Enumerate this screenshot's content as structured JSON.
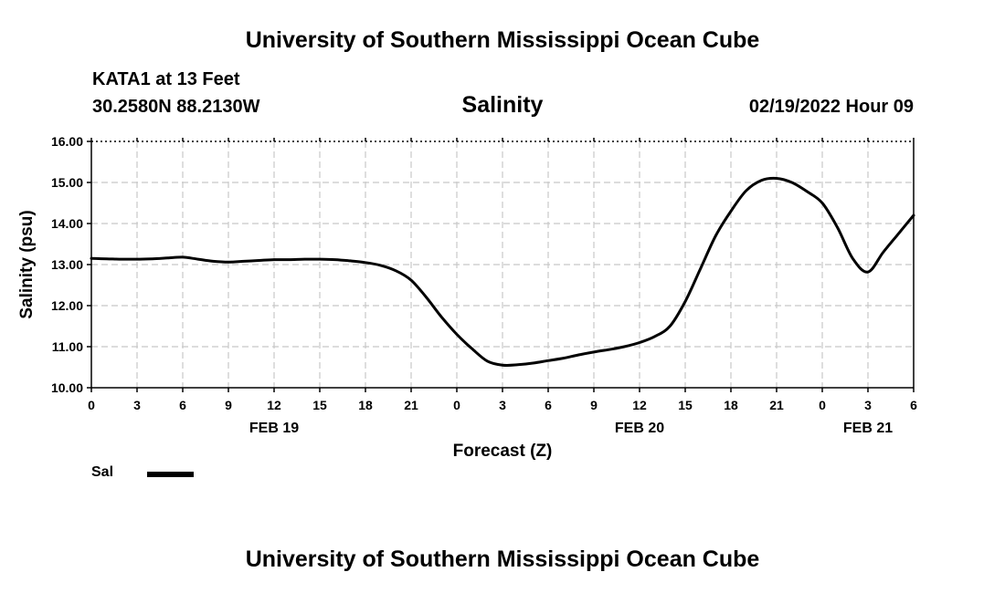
{
  "header": {
    "title": "University of Southern Mississippi Ocean Cube",
    "station": "KATA1 at 13 Feet",
    "coordinates": "30.2580N  88.2130W",
    "parameter": "Salinity",
    "datetime": "02/19/2022 Hour 09"
  },
  "footer": {
    "title": "University of Southern Mississippi Ocean Cube"
  },
  "chart_data": {
    "type": "line",
    "title": "Salinity",
    "xlabel": "Forecast (Z)",
    "ylabel": "Salinity (psu)",
    "ylim": [
      10.0,
      16.0
    ],
    "yticks": [
      "10.00",
      "11.00",
      "12.00",
      "13.00",
      "14.00",
      "15.00",
      "16.00"
    ],
    "xlim": [
      0,
      54
    ],
    "xticks": [
      "0",
      "3",
      "6",
      "9",
      "12",
      "15",
      "18",
      "21",
      "0",
      "3",
      "6",
      "9",
      "12",
      "15",
      "18",
      "21",
      "0",
      "3",
      "6"
    ],
    "day_labels": [
      {
        "label": "FEB 19",
        "hour": 12
      },
      {
        "label": "FEB 20",
        "hour": 36
      },
      {
        "label": "FEB 21",
        "hour": 51
      }
    ],
    "grid": true,
    "legend": "bottom-left",
    "series": [
      {
        "name": "Sal",
        "color": "#000000",
        "x": [
          0,
          1,
          2,
          3,
          4,
          5,
          6,
          7,
          8,
          9,
          10,
          11,
          12,
          13,
          14,
          15,
          16,
          17,
          18,
          19,
          20,
          21,
          22,
          23,
          24,
          25,
          26,
          27,
          28,
          29,
          30,
          31,
          32,
          33,
          34,
          35,
          36,
          37,
          38,
          39,
          40,
          41,
          42,
          43,
          44,
          45,
          46,
          47,
          48,
          49,
          50,
          51,
          52,
          53,
          54
        ],
        "values": [
          13.15,
          13.14,
          13.13,
          13.13,
          13.14,
          13.16,
          13.18,
          13.13,
          13.08,
          13.06,
          13.08,
          13.1,
          13.12,
          13.12,
          13.13,
          13.13,
          13.12,
          13.09,
          13.05,
          12.98,
          12.85,
          12.62,
          12.2,
          11.72,
          11.3,
          10.95,
          10.65,
          10.55,
          10.56,
          10.6,
          10.66,
          10.72,
          10.8,
          10.87,
          10.93,
          11.0,
          11.1,
          11.25,
          11.5,
          12.1,
          12.9,
          13.7,
          14.3,
          14.8,
          15.05,
          15.1,
          15.0,
          14.78,
          14.5,
          13.9,
          13.15,
          12.82,
          13.3,
          13.75,
          14.2
        ]
      }
    ]
  }
}
